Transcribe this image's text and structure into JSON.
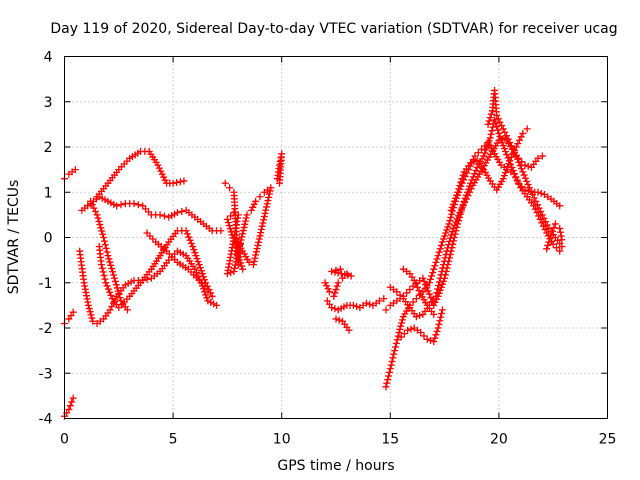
{
  "chart_data": {
    "type": "scatter",
    "title": "Day 119 of 2020, Sidereal Day-to-day VTEC variation (SDTVAR) for receiver ucag",
    "xlabel": "GPS time / hours",
    "ylabel": "SDTVAR / TECUs",
    "xlim": [
      0,
      25
    ],
    "ylim": [
      -4,
      4
    ],
    "x_ticks": [
      0,
      5,
      10,
      15,
      20,
      25
    ],
    "y_ticks": [
      -4,
      -3,
      -2,
      -1,
      0,
      1,
      2,
      3,
      4
    ],
    "x_tick_labels": [
      "0",
      "5",
      "10",
      "15",
      "20",
      "25"
    ],
    "y_tick_labels": [
      "-4",
      "-3",
      "-2",
      "-1",
      "0",
      "1",
      "2",
      "3",
      "4"
    ],
    "grid": true,
    "marker": "+",
    "color": "#ff0000",
    "series": [
      {
        "name": "s1",
        "points": [
          [
            0.0,
            1.3
          ],
          [
            0.2,
            1.4
          ],
          [
            0.5,
            1.5
          ]
        ]
      },
      {
        "name": "s2",
        "points": [
          [
            0.0,
            -1.9
          ],
          [
            0.2,
            -1.8
          ],
          [
            0.4,
            -1.65
          ]
        ]
      },
      {
        "name": "s3",
        "points": [
          [
            0.0,
            -3.95
          ],
          [
            0.2,
            -3.8
          ],
          [
            0.4,
            -3.55
          ]
        ]
      },
      {
        "name": "s4",
        "points": [
          [
            0.8,
            0.6
          ],
          [
            1.2,
            0.75
          ],
          [
            1.6,
            0.9
          ],
          [
            2.0,
            0.8
          ],
          [
            2.4,
            0.7
          ],
          [
            2.8,
            0.75
          ],
          [
            3.2,
            0.75
          ],
          [
            3.6,
            0.7
          ],
          [
            4.0,
            0.5
          ],
          [
            4.4,
            0.5
          ],
          [
            4.8,
            0.45
          ],
          [
            5.2,
            0.55
          ],
          [
            5.6,
            0.6
          ],
          [
            6.0,
            0.45
          ],
          [
            6.4,
            0.3
          ],
          [
            6.8,
            0.15
          ],
          [
            7.2,
            0.15
          ]
        ]
      },
      {
        "name": "s5",
        "points": [
          [
            1.5,
            0.9
          ],
          [
            2.0,
            1.2
          ],
          [
            2.5,
            1.5
          ],
          [
            3.0,
            1.75
          ],
          [
            3.5,
            1.9
          ],
          [
            3.9,
            1.9
          ],
          [
            4.3,
            1.6
          ],
          [
            4.7,
            1.2
          ],
          [
            5.0,
            1.2
          ],
          [
            5.5,
            1.25
          ]
        ]
      },
      {
        "name": "s6",
        "points": [
          [
            0.7,
            -0.3
          ],
          [
            0.9,
            -1.0
          ],
          [
            1.1,
            -1.5
          ],
          [
            1.3,
            -1.85
          ],
          [
            1.5,
            -1.9
          ],
          [
            1.8,
            -1.8
          ],
          [
            2.1,
            -1.6
          ],
          [
            2.4,
            -1.3
          ],
          [
            2.8,
            -1.05
          ],
          [
            3.2,
            -0.95
          ],
          [
            3.6,
            -0.95
          ],
          [
            4.0,
            -0.9
          ],
          [
            4.4,
            -0.75
          ],
          [
            4.8,
            -0.5
          ],
          [
            5.2,
            -0.3
          ],
          [
            5.6,
            -0.4
          ],
          [
            6.0,
            -0.7
          ],
          [
            6.3,
            -1.0
          ],
          [
            6.6,
            -1.4
          ],
          [
            7.0,
            -1.5
          ]
        ]
      },
      {
        "name": "s7",
        "points": [
          [
            1.6,
            -0.2
          ],
          [
            1.7,
            -0.6
          ],
          [
            1.9,
            -1.0
          ],
          [
            2.2,
            -1.35
          ],
          [
            2.5,
            -1.55
          ],
          [
            3.0,
            -1.3
          ],
          [
            3.5,
            -1.0
          ],
          [
            4.0,
            -0.7
          ],
          [
            4.4,
            -0.4
          ],
          [
            4.8,
            -0.1
          ],
          [
            5.2,
            0.15
          ],
          [
            5.6,
            0.15
          ],
          [
            5.9,
            -0.2
          ],
          [
            6.2,
            -0.6
          ],
          [
            6.5,
            -1.0
          ],
          [
            6.8,
            -1.3
          ]
        ]
      },
      {
        "name": "s8",
        "points": [
          [
            1.2,
            0.8
          ],
          [
            1.5,
            0.5
          ],
          [
            1.8,
            0.0
          ],
          [
            2.0,
            -0.4
          ],
          [
            2.3,
            -0.9
          ],
          [
            2.6,
            -1.4
          ],
          [
            2.9,
            -1.6
          ]
        ]
      },
      {
        "name": "s9",
        "points": [
          [
            3.8,
            0.1
          ],
          [
            4.2,
            -0.1
          ],
          [
            4.7,
            -0.3
          ],
          [
            5.2,
            -0.55
          ],
          [
            5.7,
            -0.7
          ],
          [
            6.2,
            -0.95
          ],
          [
            6.6,
            -1.15
          ]
        ]
      },
      {
        "name": "s10",
        "points": [
          [
            7.4,
            1.2
          ],
          [
            7.6,
            1.1
          ],
          [
            7.8,
            1.0
          ],
          [
            8.0,
            -0.6
          ],
          [
            8.2,
            -0.7
          ],
          [
            7.5,
            0.4
          ],
          [
            7.8,
            0.55
          ],
          [
            8.0,
            0.5
          ],
          [
            7.5,
            -0.8
          ],
          [
            7.8,
            -0.75
          ],
          [
            8.4,
            0.5
          ],
          [
            8.6,
            0.6
          ],
          [
            8.8,
            0.8
          ],
          [
            9.0,
            0.9
          ],
          [
            9.2,
            1.0
          ],
          [
            9.5,
            1.1
          ],
          [
            8.7,
            -0.6
          ],
          [
            8.5,
            -0.55
          ],
          [
            7.9,
            -0.05
          ],
          [
            8.1,
            -0.15
          ]
        ]
      },
      {
        "name": "s11",
        "points": [
          [
            9.8,
            1.3
          ],
          [
            9.9,
            1.6
          ],
          [
            10.0,
            1.85
          ],
          [
            9.9,
            1.2
          ]
        ]
      },
      {
        "name": "s12",
        "points": [
          [
            12.0,
            -1.0
          ],
          [
            12.2,
            -1.2
          ],
          [
            12.4,
            -1.3
          ],
          [
            12.6,
            -1.0
          ],
          [
            12.8,
            -0.9
          ],
          [
            13.0,
            -0.8
          ],
          [
            13.2,
            -0.85
          ],
          [
            12.3,
            -0.75
          ],
          [
            12.7,
            -0.7
          ]
        ]
      },
      {
        "name": "s13",
        "points": [
          [
            12.1,
            -1.4
          ],
          [
            12.3,
            -1.55
          ],
          [
            12.6,
            -1.6
          ],
          [
            13.0,
            -1.5
          ],
          [
            13.3,
            -1.5
          ],
          [
            13.6,
            -1.55
          ],
          [
            13.9,
            -1.45
          ],
          [
            14.2,
            -1.5
          ],
          [
            14.5,
            -1.4
          ],
          [
            14.7,
            -1.35
          ]
        ]
      },
      {
        "name": "s14",
        "points": [
          [
            12.5,
            -1.8
          ],
          [
            12.8,
            -1.85
          ],
          [
            13.1,
            -2.05
          ]
        ]
      },
      {
        "name": "s15",
        "points": [
          [
            14.8,
            -3.3
          ],
          [
            15.0,
            -2.9
          ],
          [
            15.2,
            -2.5
          ],
          [
            15.4,
            -2.1
          ],
          [
            15.6,
            -1.75
          ],
          [
            15.9,
            -1.5
          ],
          [
            16.2,
            -1.35
          ],
          [
            16.5,
            -1.2
          ],
          [
            16.8,
            -1.0
          ],
          [
            17.0,
            -0.7
          ],
          [
            17.2,
            -0.4
          ],
          [
            17.4,
            -0.1
          ],
          [
            17.7,
            0.3
          ],
          [
            18.0,
            0.8
          ],
          [
            18.3,
            1.2
          ],
          [
            18.6,
            1.5
          ],
          [
            18.9,
            1.8
          ],
          [
            19.2,
            1.95
          ],
          [
            19.5,
            2.1
          ],
          [
            19.8,
            1.85
          ],
          [
            20.1,
            1.6
          ],
          [
            20.4,
            1.5
          ],
          [
            20.7,
            1.4
          ],
          [
            21.0,
            1.1
          ],
          [
            21.3,
            0.9
          ],
          [
            21.6,
            0.7
          ],
          [
            21.9,
            0.4
          ],
          [
            22.2,
            0.1
          ],
          [
            22.5,
            -0.15
          ],
          [
            22.8,
            -0.3
          ]
        ]
      },
      {
        "name": "s16",
        "points": [
          [
            14.8,
            -1.6
          ],
          [
            15.0,
            -1.5
          ],
          [
            15.3,
            -1.4
          ],
          [
            15.6,
            -1.3
          ],
          [
            15.9,
            -1.15
          ],
          [
            16.2,
            -1.0
          ],
          [
            16.5,
            -0.9
          ],
          [
            16.8,
            -1.25
          ],
          [
            17.0,
            -1.5
          ],
          [
            17.2,
            -1.3
          ],
          [
            17.5,
            -0.9
          ],
          [
            17.8,
            -0.3
          ],
          [
            18.1,
            0.3
          ],
          [
            18.4,
            0.8
          ],
          [
            18.7,
            1.2
          ],
          [
            19.0,
            1.55
          ],
          [
            19.3,
            1.8
          ],
          [
            19.6,
            2.2
          ],
          [
            19.8,
            2.6
          ],
          [
            20.0,
            2.3
          ],
          [
            20.3,
            1.9
          ],
          [
            20.6,
            1.55
          ],
          [
            20.9,
            1.2
          ],
          [
            21.2,
            1.05
          ],
          [
            21.5,
            1.0
          ],
          [
            21.8,
            1.0
          ],
          [
            22.1,
            0.95
          ],
          [
            22.4,
            0.85
          ],
          [
            22.8,
            0.7
          ]
        ]
      },
      {
        "name": "s17",
        "points": [
          [
            15.0,
            -1.1
          ],
          [
            15.3,
            -1.2
          ],
          [
            15.6,
            -1.35
          ],
          [
            15.9,
            -1.55
          ],
          [
            16.2,
            -1.75
          ],
          [
            16.5,
            -1.7
          ],
          [
            16.8,
            -1.5
          ],
          [
            17.1,
            -1.3
          ],
          [
            17.3,
            -0.9
          ],
          [
            17.6,
            -0.3
          ],
          [
            17.9,
            0.2
          ],
          [
            18.2,
            0.55
          ],
          [
            18.5,
            0.85
          ],
          [
            18.8,
            1.15
          ],
          [
            19.1,
            1.4
          ],
          [
            19.4,
            1.65
          ],
          [
            19.7,
            1.9
          ],
          [
            20.0,
            2.15
          ],
          [
            20.3,
            2.2
          ],
          [
            20.6,
            1.95
          ],
          [
            20.9,
            1.75
          ],
          [
            21.2,
            1.6
          ],
          [
            21.5,
            1.55
          ],
          [
            21.8,
            1.75
          ],
          [
            22.0,
            1.8
          ]
        ]
      },
      {
        "name": "s18",
        "points": [
          [
            15.5,
            -2.2
          ],
          [
            15.8,
            -2.05
          ],
          [
            16.1,
            -2.0
          ],
          [
            16.4,
            -2.1
          ],
          [
            16.7,
            -2.25
          ],
          [
            17.0,
            -2.3
          ],
          [
            17.2,
            -2.0
          ],
          [
            17.4,
            -1.6
          ]
        ]
      },
      {
        "name": "s19",
        "points": [
          [
            19.5,
            2.5
          ],
          [
            19.7,
            2.8
          ],
          [
            19.8,
            3.25
          ],
          [
            19.9,
            2.7
          ],
          [
            20.2,
            2.4
          ],
          [
            20.5,
            2.1
          ],
          [
            20.8,
            1.8
          ],
          [
            21.1,
            1.45
          ],
          [
            21.4,
            1.1
          ],
          [
            21.7,
            0.8
          ],
          [
            22.0,
            0.5
          ],
          [
            22.3,
            0.2
          ],
          [
            22.6,
            0.0
          ],
          [
            22.9,
            -0.2
          ]
        ]
      },
      {
        "name": "s20",
        "points": [
          [
            17.8,
            0.6
          ],
          [
            18.1,
            1.0
          ],
          [
            18.4,
            1.45
          ],
          [
            18.7,
            1.65
          ],
          [
            19.0,
            1.7
          ],
          [
            19.3,
            1.5
          ],
          [
            19.6,
            1.25
          ],
          [
            19.9,
            1.05
          ],
          [
            20.2,
            1.3
          ],
          [
            20.5,
            1.7
          ],
          [
            20.8,
            2.0
          ],
          [
            21.1,
            2.3
          ],
          [
            21.3,
            2.4
          ]
        ]
      },
      {
        "name": "s21",
        "points": [
          [
            15.6,
            -0.7
          ],
          [
            15.9,
            -0.8
          ],
          [
            16.1,
            -0.95
          ],
          [
            16.4,
            -1.25
          ],
          [
            16.7,
            -1.5
          ],
          [
            17.0,
            -1.7
          ]
        ]
      },
      {
        "name": "s22",
        "points": [
          [
            22.2,
            -0.25
          ],
          [
            22.4,
            0.05
          ],
          [
            22.6,
            0.3
          ],
          [
            22.8,
            0.2
          ],
          [
            22.9,
            -0.05
          ]
        ]
      }
    ]
  }
}
